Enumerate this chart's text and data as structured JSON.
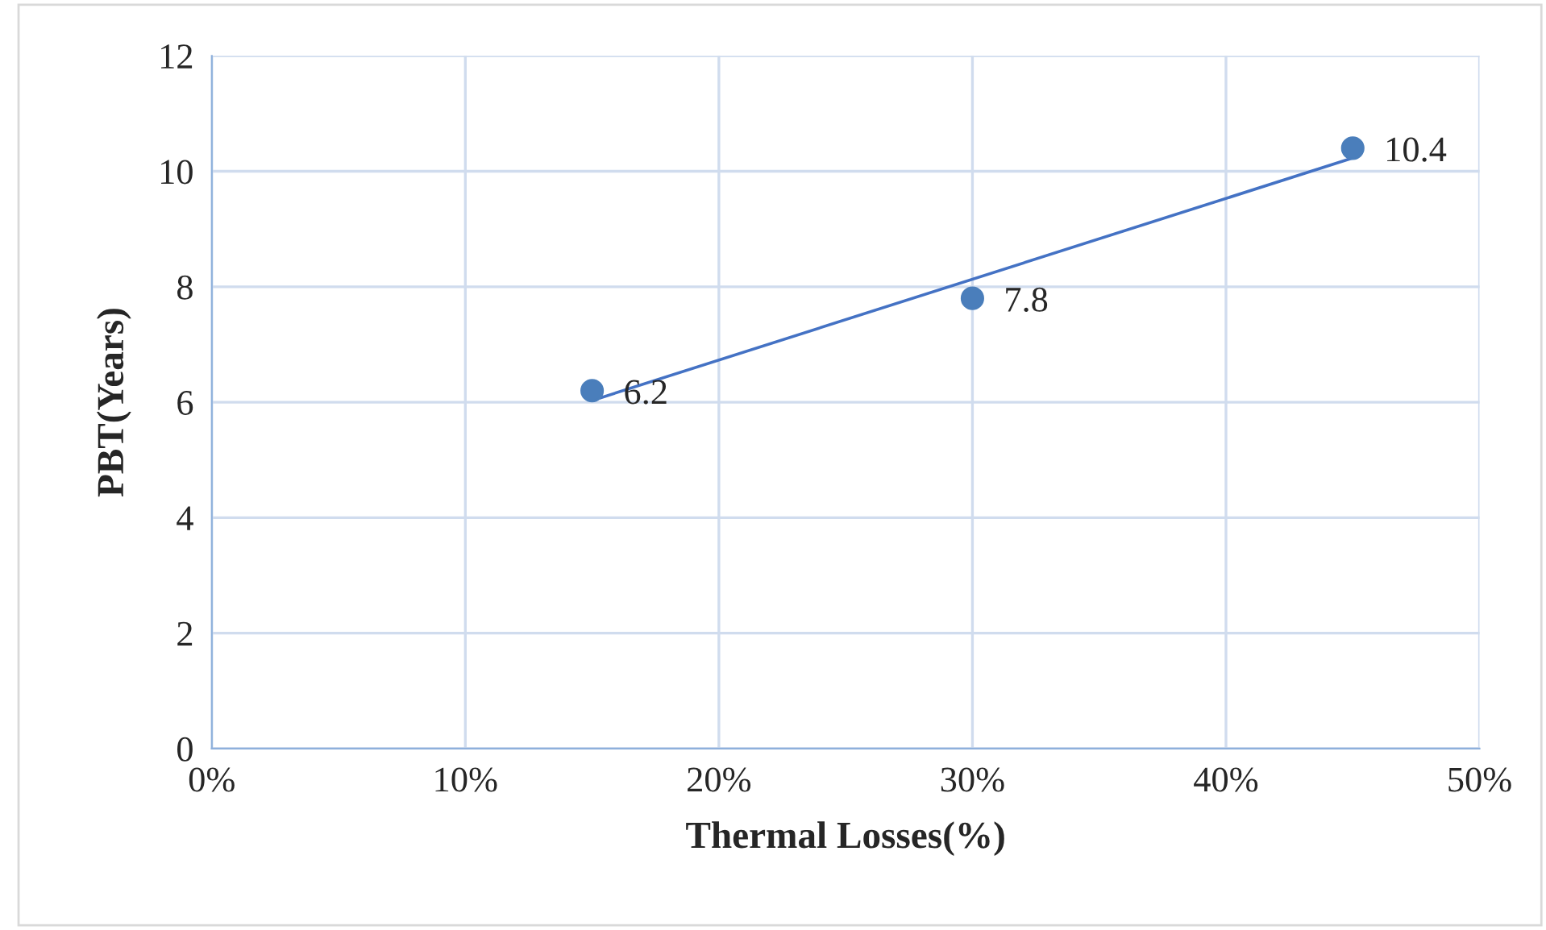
{
  "chart_data": {
    "type": "scatter",
    "xlabel": "Thermal Losses(%)",
    "ylabel": "PBT(Years)",
    "xlim": [
      0,
      50
    ],
    "xticks": [
      {
        "value": 0,
        "label": "0%"
      },
      {
        "value": 10,
        "label": "10%"
      },
      {
        "value": 20,
        "label": "20%"
      },
      {
        "value": 30,
        "label": "30%"
      },
      {
        "value": 40,
        "label": "40%"
      },
      {
        "value": 50,
        "label": "50%"
      }
    ],
    "ylim": [
      0,
      12
    ],
    "yticks": [
      0,
      2,
      4,
      6,
      8,
      10,
      12
    ],
    "grid": true,
    "series": [
      {
        "type": "scatter",
        "color": "#4a7ebb",
        "marker": "circle",
        "x": [
          15,
          30,
          45
        ],
        "values": [
          6.2,
          7.8,
          10.4
        ],
        "value_labels": [
          "6.2",
          "7.8",
          "10.4"
        ]
      },
      {
        "type": "line",
        "color": "#4472c4",
        "x": [
          15,
          45
        ],
        "values": [
          6.03,
          10.23
        ],
        "line_style": "solid"
      }
    ]
  }
}
